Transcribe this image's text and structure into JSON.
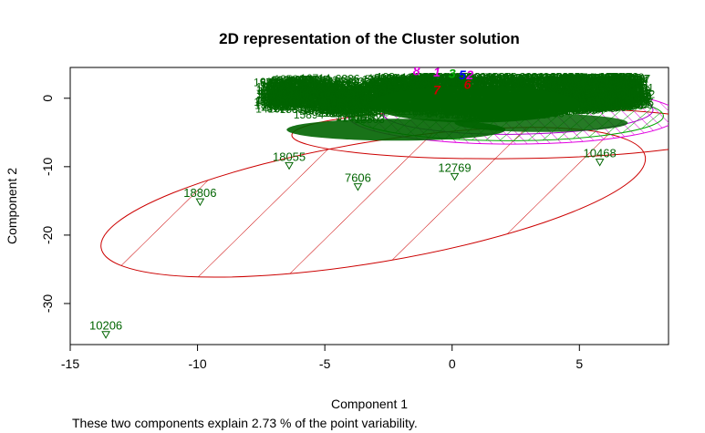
{
  "chart_data": {
    "type": "scatter",
    "title": "2D representation of the Cluster solution",
    "xlabel": "Component 1",
    "ylabel": "Component 2",
    "subtitle": "These two components explain 2.73 % of the point variability.",
    "xlim": [
      -15,
      8.5
    ],
    "ylim": [
      -36,
      4.5
    ],
    "xticks": [
      -15,
      -10,
      -5,
      0,
      5
    ],
    "yticks": [
      0,
      -10,
      -20,
      -30
    ],
    "grid": false,
    "colors": {
      "points": "#006400",
      "cluster_red": "#cc0000",
      "cluster_magenta": "#e000e0",
      "cluster_green": "#00aa00",
      "cluster_blue": "#0000ff",
      "cluster_purple": "#aa00cc"
    },
    "ellipses": [
      {
        "cx": -3.1,
        "cy": -15.2,
        "a": 12.6,
        "b": 4.1,
        "angle_deg": 32,
        "color": "#cc0000"
      },
      {
        "cx": 2.3,
        "cy": -5.1,
        "a": 8.6,
        "b": 3.7,
        "angle_deg": 2,
        "color": "#cc0000"
      },
      {
        "cx": 2.4,
        "cy": -2.5,
        "a": 6.5,
        "b": 4.2,
        "angle_deg": 0,
        "color": "#e000e0"
      },
      {
        "cx": 2.2,
        "cy": -2.6,
        "a": 6.1,
        "b": 3.6,
        "angle_deg": 0,
        "color": "#00aa00"
      },
      {
        "cx": 2.6,
        "cy": -2.0,
        "a": 5.3,
        "b": 3.2,
        "angle_deg": 3,
        "color": "#aa00cc"
      }
    ],
    "labeled_points": [
      {
        "label": "10206",
        "x": -13.6,
        "y": -34.5
      },
      {
        "label": "18806",
        "x": -9.9,
        "y": -15.1
      },
      {
        "label": "18055",
        "x": -6.4,
        "y": -9.8
      },
      {
        "label": "7606",
        "x": -3.7,
        "y": -12.9
      },
      {
        "label": "12769",
        "x": 0.1,
        "y": -11.4
      },
      {
        "label": "10468",
        "x": 5.8,
        "y": -9.3
      }
    ],
    "cluster_ids": [
      {
        "label": "8",
        "x": -1.4,
        "y": 3.4,
        "color": "#e000e0"
      },
      {
        "label": "1",
        "x": -0.6,
        "y": 3.2,
        "color": "#e000e0"
      },
      {
        "label": "3",
        "x": 0.0,
        "y": 3.0,
        "color": "#00aa00"
      },
      {
        "label": "5",
        "x": 0.4,
        "y": 2.8,
        "color": "#0000ff"
      },
      {
        "label": "2",
        "x": 0.7,
        "y": 2.8,
        "color": "#e000e0"
      },
      {
        "label": "7",
        "x": -0.6,
        "y": 0.6,
        "color": "#cc0000"
      },
      {
        "label": "6",
        "x": 0.6,
        "y": 1.4,
        "color": "#cc0000"
      }
    ]
  }
}
